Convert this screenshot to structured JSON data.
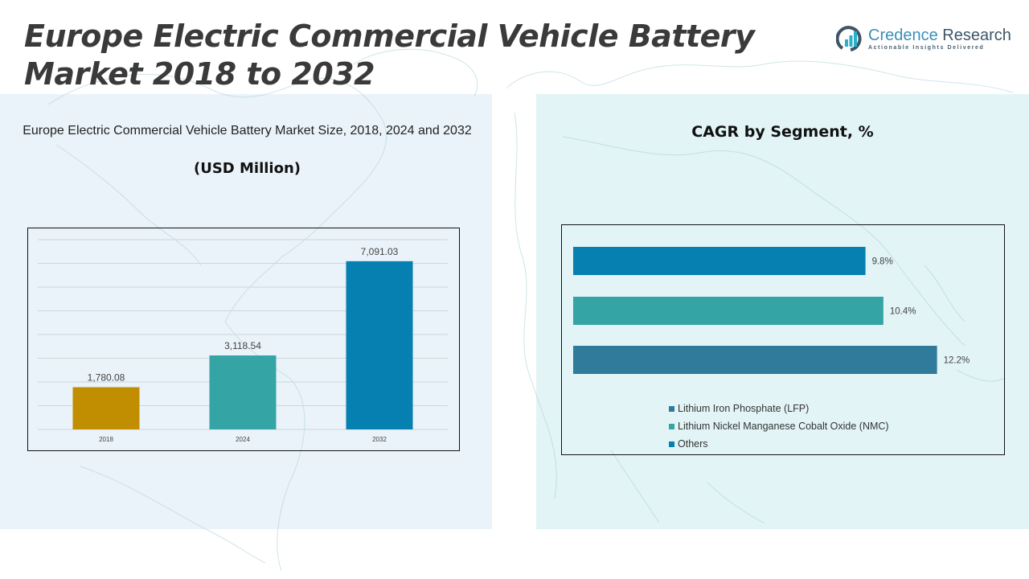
{
  "header": {
    "title_line1": "Europe Electric Commercial Vehicle Battery",
    "title_line2": "Market 2018 to 2032"
  },
  "logo": {
    "name_part1": "Credence",
    "name_part2": "Research",
    "tagline": "Actionable Insights Delivered",
    "icon": "bar-chart-circle-icon"
  },
  "chart_data": [
    {
      "type": "bar",
      "title": "Europe Electric Commercial Vehicle Battery Market Size, 2018, 2024 and 2032",
      "subtitle": "(USD Million)",
      "categories": [
        "2018",
        "2024",
        "2032"
      ],
      "values": [
        1780.08,
        3118.54,
        7091.03
      ],
      "value_labels": [
        "1,780.08",
        "3,118.54",
        "7,091.03"
      ],
      "colors": [
        "#c08e00",
        "#35a4a5",
        "#0580b0"
      ],
      "xlabel": "",
      "ylabel": "",
      "ylim": [
        0,
        8000
      ],
      "ytick_step": 1000,
      "grid": true,
      "show_yaxis_labels": false
    },
    {
      "type": "bar",
      "orientation": "horizontal",
      "title": "CAGR by Segment, %",
      "categories": [
        "Others",
        "Lithium Nickel Manganese Cobalt Oxide (NMC)",
        "Lithium Iron Phosphate (LFP)"
      ],
      "values": [
        9.8,
        10.4,
        12.2
      ],
      "value_labels": [
        "9.8%",
        "10.4%",
        "12.2%"
      ],
      "colors": [
        "#0580b0",
        "#35a4a5",
        "#307b9b"
      ],
      "xlim": [
        0,
        13.5
      ],
      "grid": false,
      "legend": {
        "position": "bottom",
        "entries": [
          {
            "label": "Lithium Iron Phosphate (LFP)",
            "color": "#307b9b"
          },
          {
            "label": "Lithium Nickel Manganese Cobalt Oxide (NMC)",
            "color": "#35a4a5"
          },
          {
            "label": "Others",
            "color": "#0580b0"
          }
        ]
      }
    }
  ]
}
